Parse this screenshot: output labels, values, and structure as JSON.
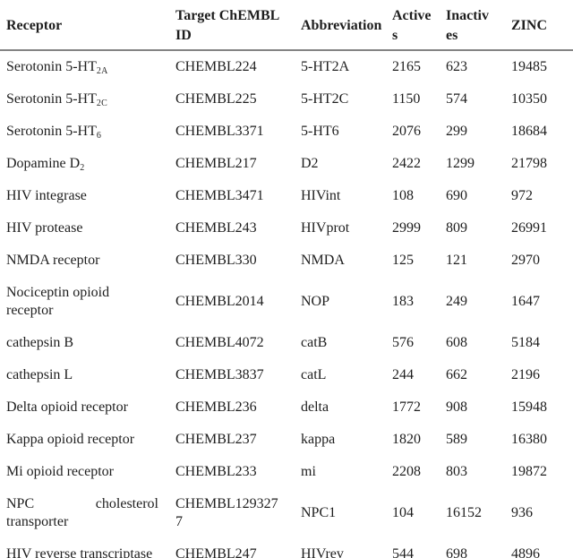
{
  "table": {
    "columns": [
      {
        "label": "Receptor"
      },
      {
        "label": "Target ChEMBLID"
      },
      {
        "label": "Abbreviation"
      },
      {
        "label": "Actives"
      },
      {
        "label": "Inactives"
      },
      {
        "label": "ZINC"
      }
    ],
    "rows": [
      {
        "receptor": "Serotonin 5-HT",
        "receptor_sub": "2A",
        "chembl": "CHEMBL224",
        "abbrev": "5-HT2A",
        "actives": "2165",
        "inactives": "623",
        "zinc": "19485"
      },
      {
        "receptor": "Serotonin 5-HT",
        "receptor_sub": "2C",
        "chembl": "CHEMBL225",
        "abbrev": "5-HT2C",
        "actives": "1150",
        "inactives": "574",
        "zinc": "10350"
      },
      {
        "receptor": "Serotonin 5-HT",
        "receptor_sub": "6",
        "chembl": "CHEMBL3371",
        "abbrev": "5-HT6",
        "actives": "2076",
        "inactives": "299",
        "zinc": "18684"
      },
      {
        "receptor": "Dopamine D",
        "receptor_sub": "2",
        "chembl": "CHEMBL217",
        "abbrev": "D2",
        "actives": "2422",
        "inactives": "1299",
        "zinc": "21798"
      },
      {
        "receptor": "HIV integrase",
        "chembl": "CHEMBL3471",
        "abbrev": "HIVint",
        "actives": "108",
        "inactives": "690",
        "zinc": "972"
      },
      {
        "receptor": "HIV protease",
        "chembl": "CHEMBL243",
        "abbrev": "HIVprot",
        "actives": "2999",
        "inactives": "809",
        "zinc": "26991"
      },
      {
        "receptor": "NMDA receptor",
        "chembl": "CHEMBL330",
        "abbrev": "NMDA",
        "actives": "125",
        "inactives": "121",
        "zinc": "2970"
      },
      {
        "receptor": "Nociceptin opioid receptor",
        "chembl": "CHEMBL2014",
        "abbrev": "NOP",
        "actives": "183",
        "inactives": "249",
        "zinc": "1647"
      },
      {
        "receptor": "cathepsin B",
        "chembl": "CHEMBL4072",
        "abbrev": "catB",
        "actives": "576",
        "inactives": "608",
        "zinc": "5184"
      },
      {
        "receptor": "cathepsin L",
        "chembl": "CHEMBL3837",
        "abbrev": "catL",
        "actives": "244",
        "inactives": "662",
        "zinc": "2196"
      },
      {
        "receptor": "Delta opioid receptor",
        "chembl": "CHEMBL236",
        "abbrev": "delta",
        "actives": "1772",
        "inactives": "908",
        "zinc": "15948"
      },
      {
        "receptor": "Kappa opioid receptor",
        "chembl": "CHEMBL237",
        "abbrev": "kappa",
        "actives": "1820",
        "inactives": "589",
        "zinc": "16380"
      },
      {
        "receptor": "Mi opioid receptor",
        "chembl": "CHEMBL233",
        "abbrev": "mi",
        "actives": "2208",
        "inactives": "803",
        "zinc": "19872"
      },
      {
        "receptor": "NPC cholesterol transporter",
        "chembl": "CHEMBL1293277",
        "abbrev": "NPC1",
        "actives": "104",
        "inactives": "16152",
        "zinc": "936"
      },
      {
        "receptor": "HIV reverse transcriptase",
        "chembl": "CHEMBL247",
        "abbrev": "HIVrev",
        "actives": "544",
        "inactives": "698",
        "zinc": "4896"
      }
    ]
  }
}
